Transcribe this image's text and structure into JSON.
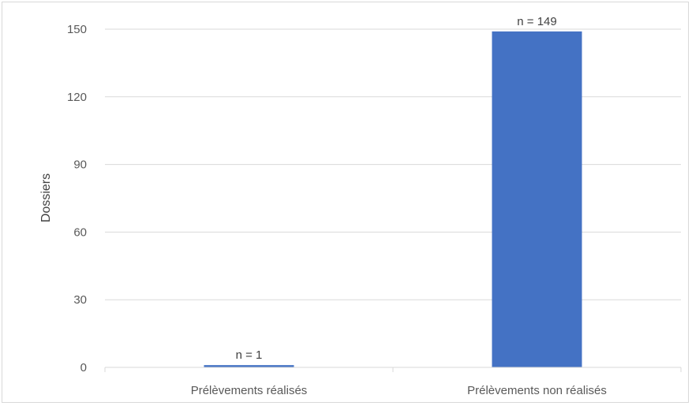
{
  "chart_data": {
    "type": "bar",
    "categories": [
      "Prélèvements réalisés",
      "Prélèvements non réalisés"
    ],
    "values": [
      1,
      149
    ],
    "data_labels": [
      "n = 1",
      "n = 149"
    ],
    "ylabel": "Dossiers",
    "xlabel": "",
    "ylim": [
      0,
      150
    ],
    "yticks": [
      0,
      30,
      60,
      90,
      120,
      150
    ],
    "grid": true,
    "bar_color": "#4472C4"
  }
}
